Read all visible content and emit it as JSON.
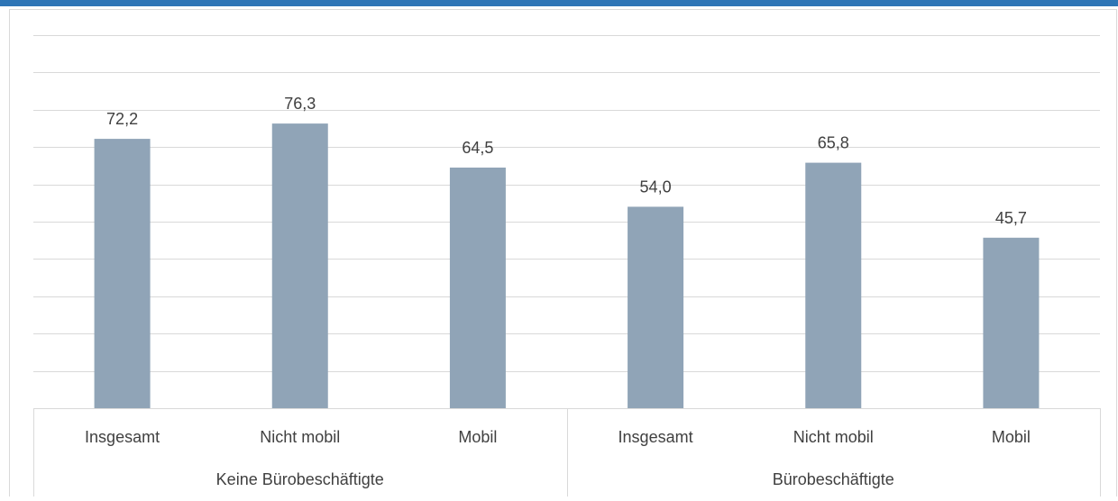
{
  "chart_data": {
    "type": "bar",
    "title": "",
    "categories": [
      "Insgesamt",
      "Nicht mobil",
      "Mobil",
      "Insgesamt",
      "Nicht mobil",
      "Mobil"
    ],
    "groups": [
      {
        "label": "Keine Bürobeschäftigte",
        "categories": [
          "Insgesamt",
          "Nicht mobil",
          "Mobil"
        ]
      },
      {
        "label": "Bürobeschäftigte",
        "categories": [
          "Insgesamt",
          "Nicht mobil",
          "Mobil"
        ]
      }
    ],
    "values": [
      72.2,
      76.3,
      64.5,
      54.0,
      65.8,
      45.7
    ],
    "value_labels": [
      "72,2",
      "76,3",
      "64,5",
      "54,0",
      "65,8",
      "45,7"
    ],
    "ylim": [
      0,
      100
    ],
    "y_gridlines": [
      0,
      10,
      20,
      30,
      40,
      50,
      60,
      70,
      80,
      90,
      100
    ],
    "grid": true,
    "bar_color": "#90A4B7",
    "grid_color": "#D9D9D9",
    "accent_color": "#2E75B6"
  }
}
